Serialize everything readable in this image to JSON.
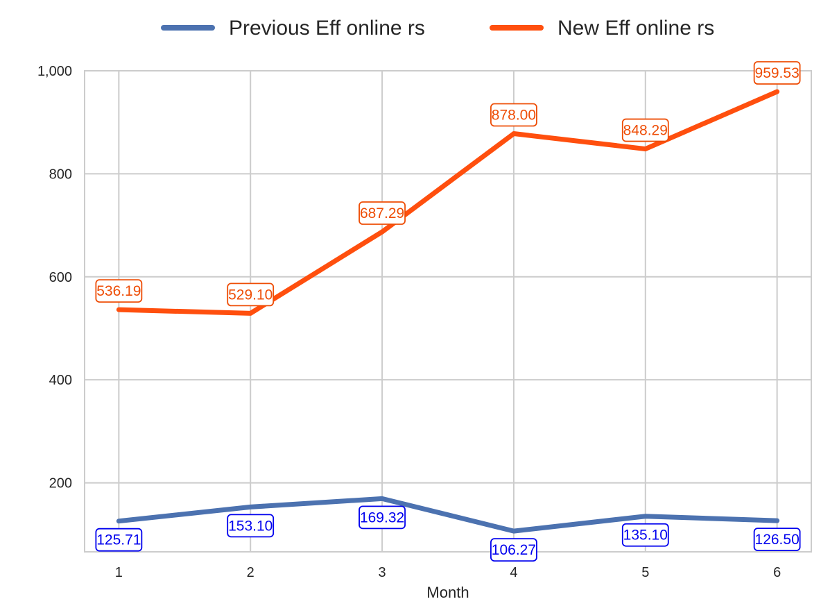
{
  "chart_data": {
    "type": "line",
    "title": "",
    "xlabel": "Month",
    "ylabel": "",
    "x": [
      1,
      2,
      3,
      4,
      5,
      6
    ],
    "xticks": [
      "1",
      "2",
      "3",
      "4",
      "5",
      "6"
    ],
    "yticks": [
      200,
      400,
      600,
      800,
      1000
    ],
    "ytick_labels": [
      "200",
      "400",
      "600",
      "800",
      "1,000"
    ],
    "ylim": [
      66,
      1000
    ],
    "xlim": [
      0.74,
      6.26
    ],
    "grid": true,
    "legend_position": "top-center",
    "series": [
      {
        "name": "Previous Eff online rs",
        "color": "#4c72b0",
        "label_color": "#0000ee",
        "values": [
          125.71,
          153.1,
          169.32,
          106.27,
          135.1,
          126.5
        ],
        "labels": [
          "125.71",
          "153.10",
          "169.32",
          "106.27",
          "135.10",
          "126.50"
        ],
        "label_placement": "below"
      },
      {
        "name": "New Eff online rs",
        "color": "#ff4f0e",
        "label_color": "#ee4d06",
        "values": [
          536.19,
          529.1,
          687.29,
          878.0,
          848.29,
          959.53
        ],
        "labels": [
          "536.19",
          "529.10",
          "687.29",
          "878.00",
          "848.29",
          "959.53"
        ],
        "label_placement": "above"
      }
    ]
  }
}
